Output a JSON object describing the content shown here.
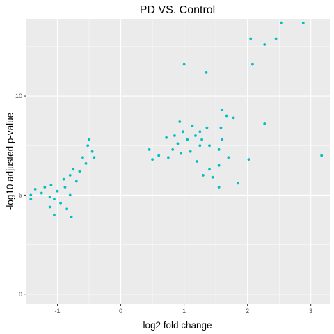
{
  "chart_data": {
    "type": "scatter",
    "title": "PD VS. Control",
    "xlabel": "log2 fold change",
    "ylabel": "-log10 adjusted p-value",
    "xlim": [
      -1.5,
      3.3
    ],
    "ylim": [
      -0.5,
      13.9
    ],
    "x_ticks": [
      -1,
      0,
      1,
      2,
      3
    ],
    "y_ticks": [
      0,
      5,
      10
    ],
    "grid": true,
    "legend": "none",
    "colors": {
      "points": "#00BFC4",
      "panel": "#EBEBEB",
      "grid": "#FFFFFF"
    },
    "points": [
      [
        2.53,
        13.7
      ],
      [
        2.88,
        13.7
      ],
      [
        2.05,
        12.9
      ],
      [
        2.27,
        12.6
      ],
      [
        2.45,
        12.9
      ],
      [
        2.08,
        11.6
      ],
      [
        1.0,
        11.6
      ],
      [
        1.35,
        11.2
      ],
      [
        1.6,
        9.3
      ],
      [
        1.67,
        9.0
      ],
      [
        1.78,
        8.9
      ],
      [
        2.27,
        8.6
      ],
      [
        1.58,
        8.4
      ],
      [
        1.36,
        8.4
      ],
      [
        1.25,
        8.2
      ],
      [
        0.93,
        8.7
      ],
      [
        1.13,
        8.5
      ],
      [
        1.18,
        8.0
      ],
      [
        1.28,
        7.8
      ],
      [
        0.98,
        8.2
      ],
      [
        0.85,
        8.0
      ],
      [
        0.72,
        7.9
      ],
      [
        0.9,
        7.6
      ],
      [
        1.05,
        7.8
      ],
      [
        1.4,
        7.5
      ],
      [
        1.6,
        7.8
      ],
      [
        1.55,
        7.3
      ],
      [
        3.17,
        7.0
      ],
      [
        1.7,
        6.9
      ],
      [
        2.02,
        6.8
      ],
      [
        1.55,
        6.5
      ],
      [
        1.4,
        6.3
      ],
      [
        1.85,
        5.6
      ],
      [
        1.55,
        5.4
      ],
      [
        1.45,
        5.9
      ],
      [
        1.2,
        6.7
      ],
      [
        1.1,
        7.2
      ],
      [
        0.95,
        7.1
      ],
      [
        0.82,
        7.3
      ],
      [
        0.6,
        7.0
      ],
      [
        0.45,
        7.3
      ],
      [
        0.5,
        6.8
      ],
      [
        0.75,
        6.9
      ],
      [
        1.3,
        6.0
      ],
      [
        1.25,
        7.5
      ],
      [
        -0.5,
        7.8
      ],
      [
        -0.52,
        7.5
      ],
      [
        -0.45,
        7.2
      ],
      [
        -0.6,
        6.9
      ],
      [
        -0.55,
        6.6
      ],
      [
        -0.75,
        6.3
      ],
      [
        -0.42,
        6.9
      ],
      [
        -0.65,
        6.2
      ],
      [
        -0.8,
        6.0
      ],
      [
        -1.42,
        5.0
      ],
      [
        -1.35,
        5.3
      ],
      [
        -1.42,
        4.8
      ],
      [
        -1.2,
        5.4
      ],
      [
        -1.25,
        5.1
      ],
      [
        -1.1,
        5.5
      ],
      [
        -1.0,
        5.2
      ],
      [
        -1.05,
        4.8
      ],
      [
        -1.12,
        4.9
      ],
      [
        -0.95,
        4.6
      ],
      [
        -1.05,
        4.0
      ],
      [
        -1.12,
        4.4
      ],
      [
        -0.9,
        5.8
      ],
      [
        -0.88,
        5.4
      ],
      [
        -0.85,
        4.3
      ],
      [
        -0.8,
        5.0
      ],
      [
        -0.78,
        3.9
      ],
      [
        -0.7,
        5.7
      ]
    ]
  }
}
